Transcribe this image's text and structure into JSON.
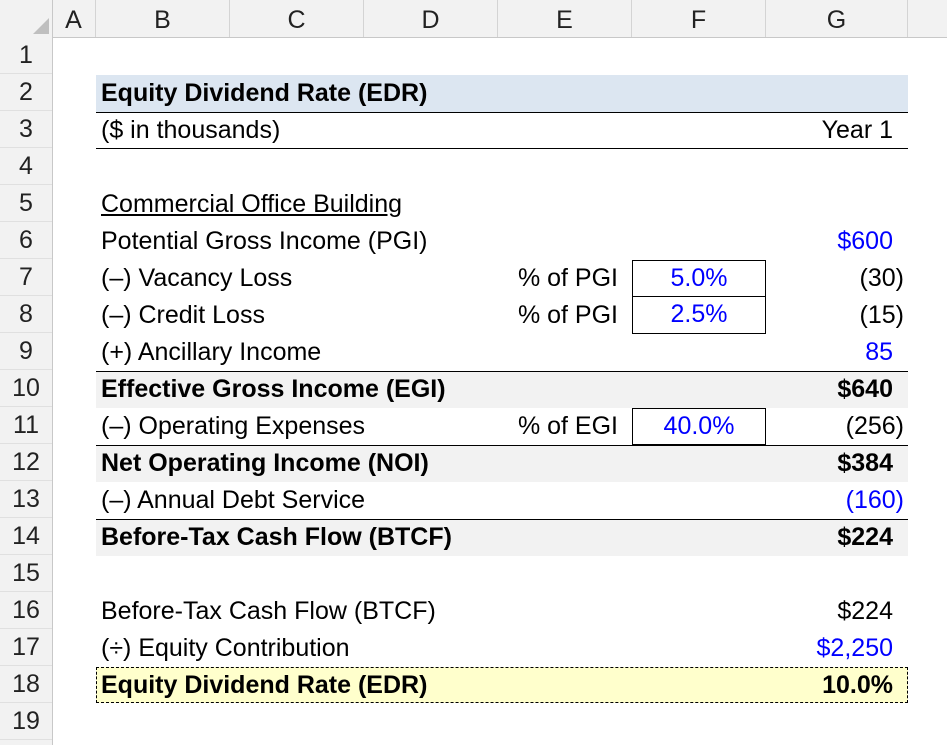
{
  "columns": [
    "A",
    "B",
    "C",
    "D",
    "E",
    "F",
    "G"
  ],
  "rows": [
    "1",
    "2",
    "3",
    "4",
    "5",
    "6",
    "7",
    "8",
    "9",
    "10",
    "11",
    "12",
    "13",
    "14",
    "15",
    "16",
    "17",
    "18",
    "19"
  ],
  "title": "Equity Dividend Rate (EDR)",
  "units": "($ in thousands)",
  "period": "Year 1",
  "section": "Commercial Office Building",
  "lines": {
    "pgi": {
      "label": "Potential Gross Income (PGI)",
      "value": "$600"
    },
    "vacancy": {
      "label": "(–) Vacancy Loss",
      "basis": "% of PGI",
      "rate": "5.0%",
      "value": "(30)"
    },
    "credit": {
      "label": "(–) Credit Loss",
      "basis": "% of PGI",
      "rate": "2.5%",
      "value": "(15)"
    },
    "ancillary": {
      "label": "(+) Ancillary Income",
      "value": "85"
    },
    "egi": {
      "label": "Effective Gross Income (EGI)",
      "value": "$640"
    },
    "opex": {
      "label": "(–) Operating Expenses",
      "basis": "% of EGI",
      "rate": "40.0%",
      "value": "(256)"
    },
    "noi": {
      "label": "Net Operating Income (NOI)",
      "value": "$384"
    },
    "debt": {
      "label": "(–) Annual Debt Service",
      "value": "(160)"
    },
    "btcf": {
      "label": "Before-Tax Cash Flow (BTCF)",
      "value": "$224"
    },
    "btcf2": {
      "label": "Before-Tax Cash Flow (BTCF)",
      "value": "$224"
    },
    "equity": {
      "label": "(÷) Equity Contribution",
      "value": "$2,250"
    },
    "edr": {
      "label": "Equity Dividend Rate (EDR)",
      "value": "10.0%"
    }
  },
  "colors": {
    "title_fill": "#dce6f1",
    "subtotal_fill": "#f2f2f2",
    "result_fill": "#ffffcc",
    "input_blue": "#0000ff",
    "header_fill": "#f2f2f2"
  }
}
